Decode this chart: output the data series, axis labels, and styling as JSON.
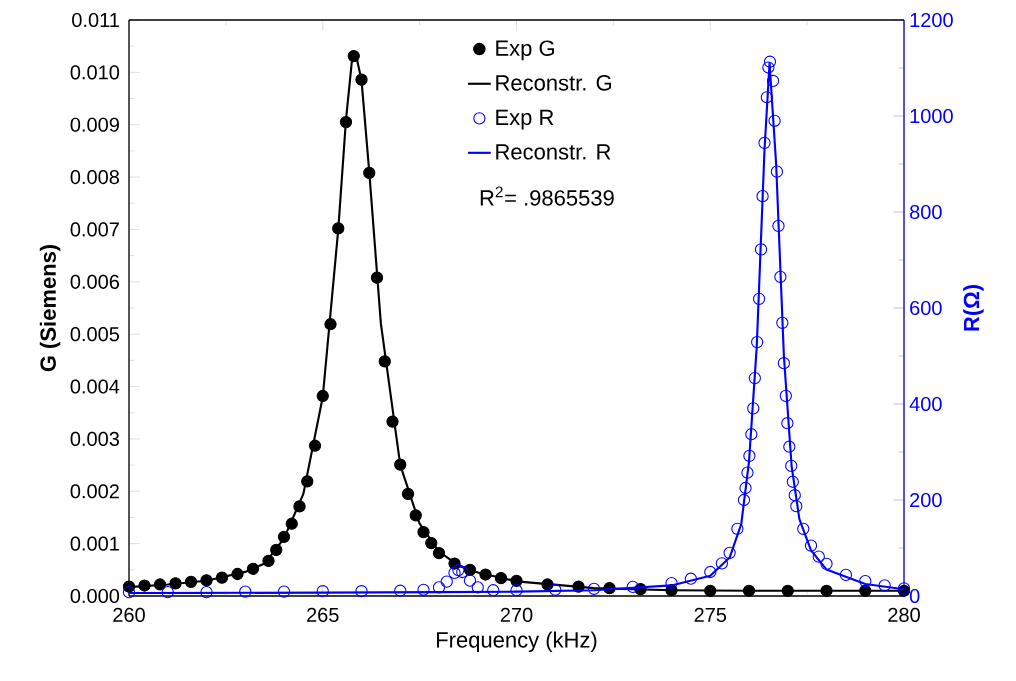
{
  "chart_data": {
    "type": "scatter",
    "xlabel": "Frequency (kHz)",
    "ylabel": "G (Siemens)",
    "y2label": "R(Ω)",
    "xlim": [
      260,
      280
    ],
    "xticks": [
      260,
      265,
      270,
      275,
      280
    ],
    "ylim": [
      0,
      0.011
    ],
    "yticks": [
      {
        "value": 0,
        "label": "0.000"
      },
      {
        "value": 0.001,
        "label": "0.001"
      },
      {
        "value": 0.002,
        "label": "0.002"
      },
      {
        "value": 0.003,
        "label": "0.003"
      },
      {
        "value": 0.004,
        "label": "0.004"
      },
      {
        "value": 0.005,
        "label": "0.005"
      },
      {
        "value": 0.006,
        "label": "0.006"
      },
      {
        "value": 0.007,
        "label": "0.007"
      },
      {
        "value": 0.008,
        "label": "0.008"
      },
      {
        "value": 0.009,
        "label": "0.009"
      },
      {
        "value": 0.01,
        "label": "0.010"
      },
      {
        "value": 0.011,
        "label": "0.011"
      }
    ],
    "y2lim": [
      0,
      1200
    ],
    "y2ticks": [
      0,
      200,
      400,
      600,
      800,
      1000,
      1200
    ],
    "legend": "top",
    "grid": false,
    "annotations": [
      "R$^{2}$= .9865539"
    ],
    "series": [
      {
        "name": "Exp G",
        "marker": "circle",
        "color": "#000000",
        "x": [
          260.0,
          260.4,
          260.8,
          261.2,
          261.6,
          262.0,
          262.4,
          262.8,
          263.2,
          263.6,
          263.8,
          264.0,
          264.2,
          264.4,
          264.6,
          264.8,
          265.0,
          265.2,
          265.4,
          265.6,
          265.8,
          266.0,
          266.2,
          266.4,
          266.6,
          266.8,
          267.0,
          267.2,
          267.4,
          267.6,
          267.8,
          268.0,
          268.4,
          268.8,
          269.2,
          269.6,
          270.0,
          270.8,
          271.6,
          272.4,
          273.2,
          274.0,
          275.0,
          276.0,
          277.0,
          278.0,
          279.0,
          280.0
        ],
        "values": [
          0.00018,
          0.0002,
          0.00022,
          0.00024,
          0.00027,
          0.0003,
          0.00035,
          0.00042,
          0.00052,
          0.00067,
          0.00088,
          0.00113,
          0.00138,
          0.00171,
          0.00219,
          0.00287,
          0.00382,
          0.00519,
          0.00702,
          0.00905,
          0.01031,
          0.00986,
          0.00808,
          0.00608,
          0.00448,
          0.00333,
          0.00251,
          0.00195,
          0.00154,
          0.00122,
          0.00101,
          0.00082,
          0.00062,
          0.0005,
          0.00041,
          0.00034,
          0.00029,
          0.00022,
          0.00018,
          0.00015,
          0.00013,
          0.00011,
          0.0001,
          0.0001,
          0.0001,
          0.0001,
          0.0001,
          0.0001
        ]
      },
      {
        "name": "Reconstr. G",
        "type": "line",
        "color": "#000000",
        "x": [
          260,
          261,
          262,
          263,
          263.5,
          264,
          264.5,
          265,
          265.4,
          265.6,
          265.75,
          265.85,
          266.0,
          266.2,
          266.5,
          267,
          267.5,
          268,
          268.5,
          269,
          270,
          272,
          274,
          276,
          278,
          280
        ],
        "values": [
          0.00017,
          0.00022,
          0.00029,
          0.00046,
          0.00062,
          0.0011,
          0.00195,
          0.0038,
          0.007,
          0.0091,
          0.0102,
          0.01036,
          0.00985,
          0.0081,
          0.0052,
          0.0025,
          0.00138,
          0.00085,
          0.00058,
          0.00045,
          0.00028,
          0.00015,
          0.00011,
          0.0001,
          0.0001,
          0.0001
        ]
      },
      {
        "name": "Exp R",
        "marker": "circle",
        "axis": "y2",
        "color": "#0000ff",
        "x": [
          260,
          261,
          262,
          263,
          264,
          265,
          266,
          267,
          267.6,
          268.0,
          268.2,
          268.4,
          268.5,
          268.6,
          268.8,
          269.0,
          269.4,
          270,
          271,
          272,
          273,
          274,
          274.5,
          275.0,
          275.3,
          275.5,
          275.7,
          275.87,
          275.91,
          275.96,
          276.01,
          276.06,
          276.11,
          276.15,
          276.21,
          276.26,
          276.31,
          276.35,
          276.4,
          276.46,
          276.5,
          276.54,
          276.62,
          276.66,
          276.72,
          276.76,
          276.81,
          276.86,
          276.9,
          276.95,
          276.99,
          277.04,
          277.09,
          277.13,
          277.18,
          277.22,
          277.4,
          277.6,
          277.8,
          278.0,
          278.5,
          279.0,
          279.5,
          280.0
        ],
        "values": [
          8,
          8,
          8,
          9,
          9,
          10,
          10,
          11,
          13,
          18,
          30,
          48,
          54,
          50,
          32,
          18,
          12,
          12,
          13,
          15,
          19,
          27,
          36,
          50,
          68,
          90,
          140,
          200,
          225,
          257,
          292,
          337,
          391,
          454,
          529,
          619,
          722,
          833,
          944,
          1039,
          1101,
          1113,
          1073,
          990,
          884,
          771,
          665,
          569,
          485,
          417,
          360,
          311,
          271,
          238,
          210,
          187,
          140,
          105,
          82,
          67,
          44,
          31,
          22,
          16
        ]
      },
      {
        "name": "Reconstr. R",
        "type": "line",
        "axis": "y2",
        "color": "#0000ff",
        "x": [
          260,
          265,
          268,
          270,
          272,
          274,
          275,
          275.5,
          275.8,
          276.0,
          276.2,
          276.4,
          276.53,
          276.7,
          276.9,
          277.1,
          277.3,
          277.6,
          278,
          279,
          280
        ],
        "values": [
          6,
          7,
          8,
          9,
          12,
          22,
          42,
          80,
          150,
          280,
          520,
          930,
          1110,
          900,
          500,
          270,
          160,
          95,
          55,
          25,
          14
        ]
      }
    ]
  }
}
